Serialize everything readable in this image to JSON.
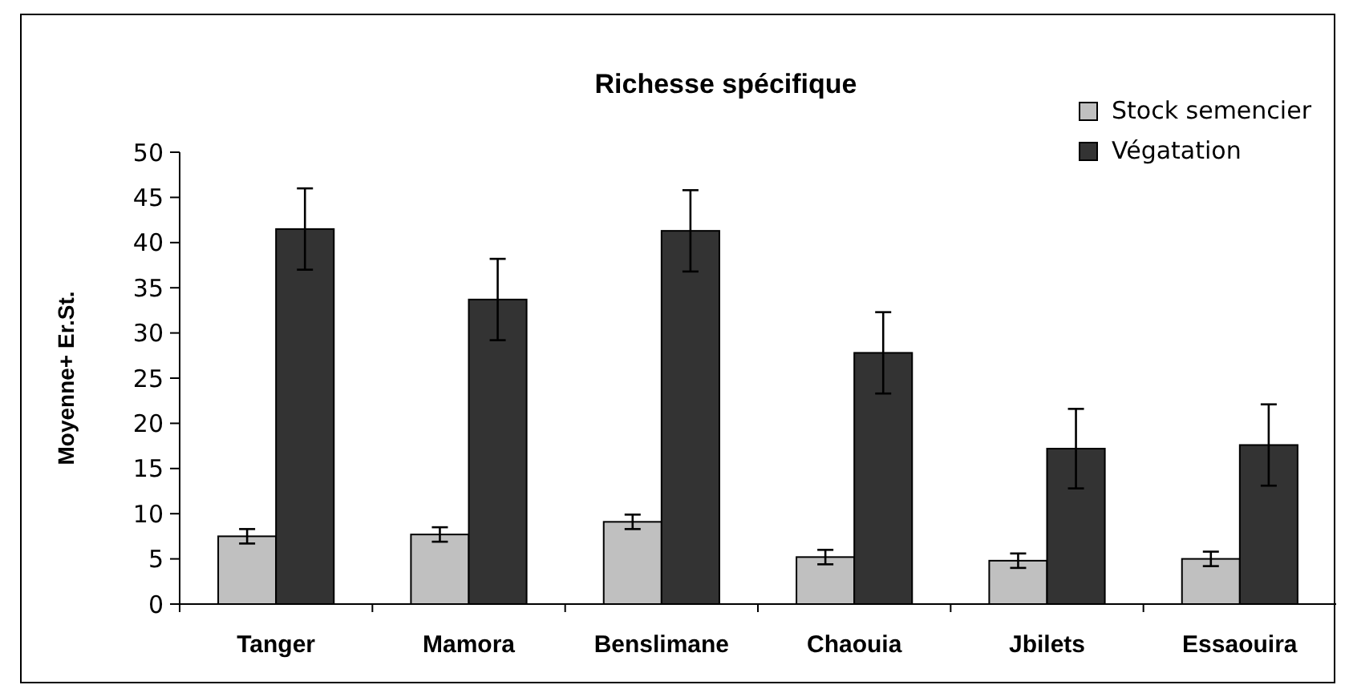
{
  "chart_data": {
    "type": "bar",
    "title": "Richesse spécifique",
    "ylabel": "Moyenne+ Er.St.",
    "categories": [
      "Tanger",
      "Mamora",
      "Benslimane",
      "Chaouia",
      "Jbilets",
      "Essaouira"
    ],
    "series": [
      {
        "name": "Stock semencier",
        "color": "#c0c0c0",
        "values": [
          7.5,
          7.7,
          9.1,
          5.2,
          4.8,
          5.0
        ],
        "errors": [
          0.8,
          0.8,
          0.8,
          0.8,
          0.8,
          0.8
        ]
      },
      {
        "name": "Végatation",
        "color": "#333333",
        "values": [
          41.5,
          33.7,
          41.3,
          27.8,
          17.2,
          17.6
        ],
        "errors": [
          4.5,
          4.5,
          4.5,
          4.5,
          4.4,
          4.5
        ]
      }
    ],
    "ylim": [
      0,
      50
    ],
    "yticks": [
      0,
      5,
      10,
      15,
      20,
      25,
      30,
      35,
      40,
      45,
      50
    ],
    "grid": false,
    "legend": "top right"
  }
}
